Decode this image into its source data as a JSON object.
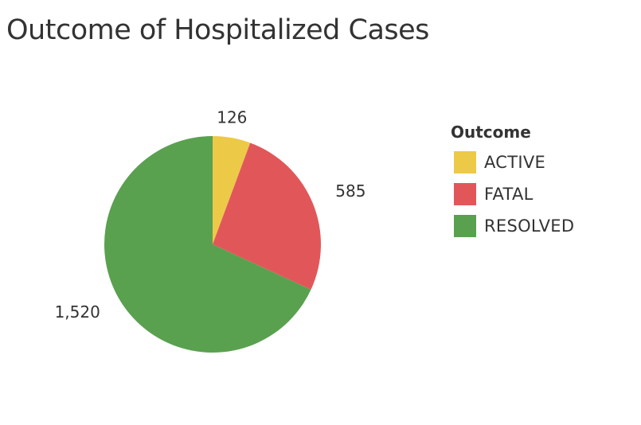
{
  "chart_data": {
    "type": "pie",
    "title": "Outcome of Hospitalized Cases",
    "legend_title": "Outcome",
    "legend_position": "right",
    "slices": [
      {
        "label": "ACTIVE",
        "value": 126,
        "value_label": "126",
        "color": "#EDC948"
      },
      {
        "label": "FATAL",
        "value": 585,
        "value_label": "585",
        "color": "#E15759"
      },
      {
        "label": "RESOLVED",
        "value": 1520,
        "value_label": "1,520",
        "color": "#59A14F"
      }
    ]
  }
}
